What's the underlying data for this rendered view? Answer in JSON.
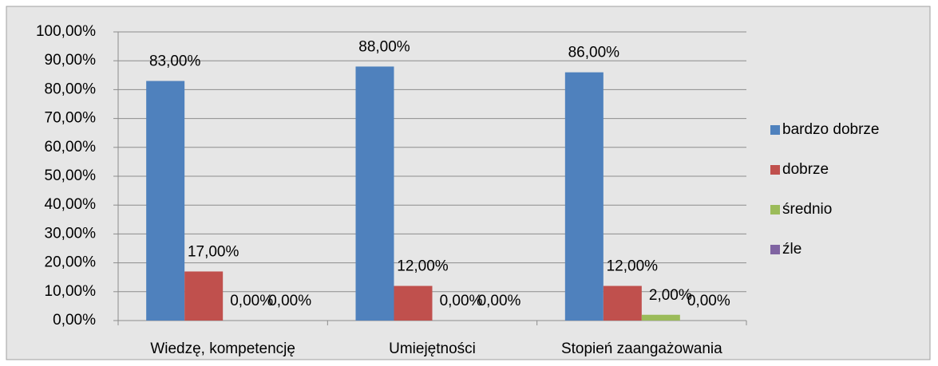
{
  "chart_data": {
    "type": "bar",
    "categories": [
      "Wiedzę, kompetencję",
      "Umiejętności",
      "Stopień zaangażowania"
    ],
    "series": [
      {
        "name": "bardzo dobrze",
        "color": "#4f81bd",
        "values": [
          83,
          88,
          86
        ],
        "value_labels": [
          "83,00%",
          "88,00%",
          "86,00%"
        ]
      },
      {
        "name": "dobrze",
        "color": "#c0504d",
        "values": [
          17,
          12,
          12
        ],
        "value_labels": [
          "17,00%",
          "12,00%",
          "12,00%"
        ]
      },
      {
        "name": "średnio",
        "color": "#9bbb59",
        "values": [
          0,
          0,
          2
        ],
        "value_labels": [
          "0,00%",
          "0,00%",
          "2,00%"
        ]
      },
      {
        "name": "źle",
        "color": "#8064a2",
        "values": [
          0,
          0,
          0
        ],
        "value_labels": [
          "0,00%",
          "0,00%",
          "0,00%"
        ]
      }
    ],
    "ylim": [
      0,
      100
    ],
    "yticks": [
      {
        "value": 0,
        "label": "0,00%"
      },
      {
        "value": 10,
        "label": "10,00%"
      },
      {
        "value": 20,
        "label": "20,00%"
      },
      {
        "value": 30,
        "label": "30,00%"
      },
      {
        "value": 40,
        "label": "40,00%"
      },
      {
        "value": 50,
        "label": "50,00%"
      },
      {
        "value": 60,
        "label": "60,00%"
      },
      {
        "value": 70,
        "label": "70,00%"
      },
      {
        "value": 80,
        "label": "80,00%"
      },
      {
        "value": 90,
        "label": "90,00%"
      },
      {
        "value": 100,
        "label": "100,00%"
      }
    ],
    "grid": true,
    "legend": "right"
  }
}
